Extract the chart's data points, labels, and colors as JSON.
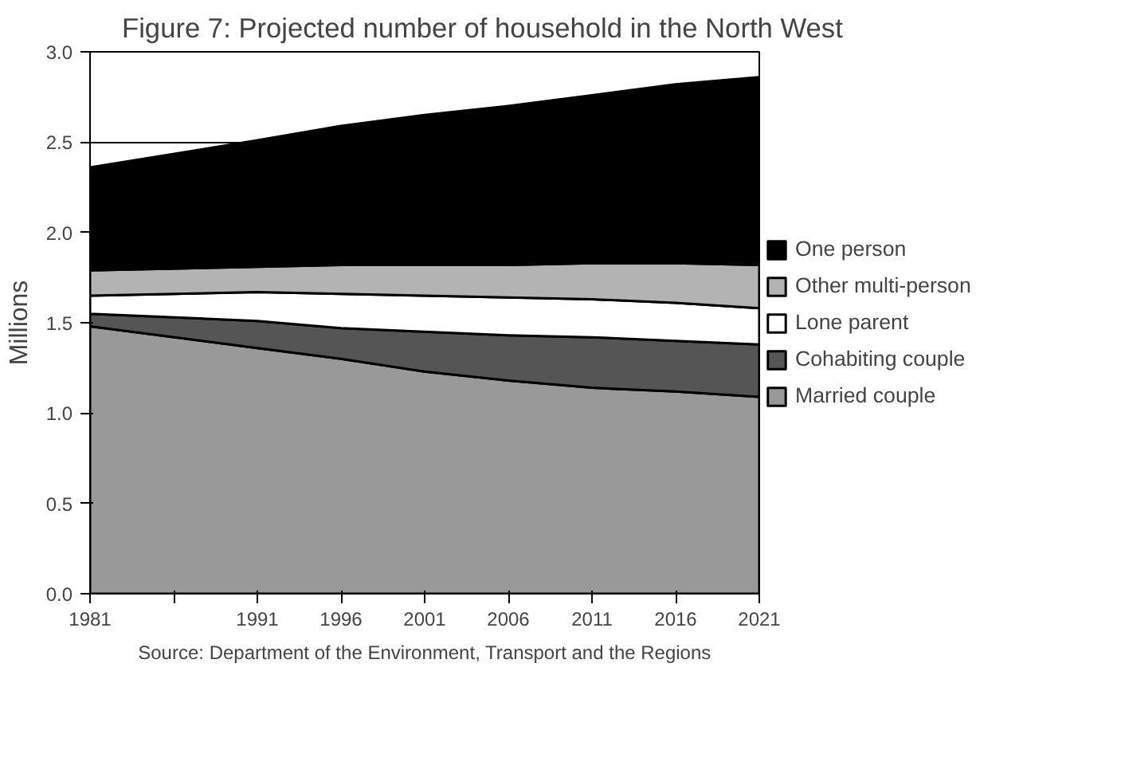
{
  "chart_data": {
    "type": "area",
    "stacked": true,
    "title": "Figure 7: Projected number of household in the North West",
    "ylabel": "Millions",
    "annotations": [
      "Source: Department of the Environment, Transport and the Regions"
    ],
    "x": [
      1981,
      1991,
      1996,
      2001,
      2006,
      2011,
      2016,
      2021
    ],
    "xlim": [
      1981,
      2021
    ],
    "xticks": [
      1981,
      {
        "value": 1986,
        "label": null
      },
      1991,
      1996,
      2001,
      2006,
      2011,
      2016,
      2021
    ],
    "ylim": [
      0,
      3
    ],
    "yticks": [
      {
        "value": 0,
        "label": "0.0"
      },
      0.5,
      {
        "value": 1,
        "label": "1.0"
      },
      1.5,
      {
        "value": 2,
        "label": "2.0"
      },
      2.5,
      {
        "value": 3,
        "label": "3.0"
      }
    ],
    "grid": "y",
    "legend": "right",
    "series": [
      {
        "name": "Married couple",
        "color": "#999999",
        "values": [
          1.48,
          1.36,
          1.3,
          1.23,
          1.18,
          1.14,
          1.12,
          1.09
        ]
      },
      {
        "name": "Cohabiting couple",
        "color": "#555555",
        "values": [
          0.07,
          0.15,
          0.17,
          0.22,
          0.25,
          0.28,
          0.28,
          0.29
        ]
      },
      {
        "name": "Lone parent",
        "color": "#ffffff",
        "values": [
          0.1,
          0.16,
          0.19,
          0.2,
          0.21,
          0.21,
          0.21,
          0.2
        ]
      },
      {
        "name": "Other multi-person",
        "color": "#b3b3b3",
        "values": [
          0.14,
          0.14,
          0.16,
          0.17,
          0.18,
          0.2,
          0.22,
          0.24
        ]
      },
      {
        "name": "One person",
        "color": "#000000",
        "values": [
          0.57,
          0.7,
          0.77,
          0.83,
          0.88,
          0.93,
          0.99,
          1.04
        ]
      }
    ]
  }
}
